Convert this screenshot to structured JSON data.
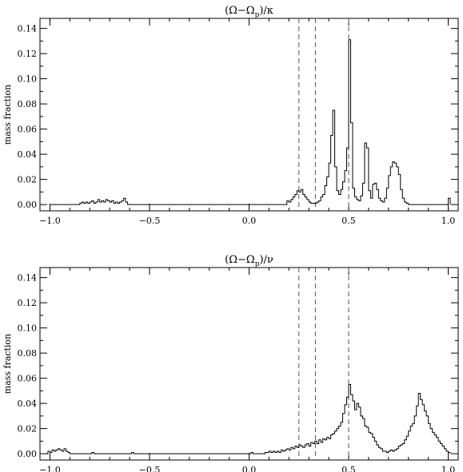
{
  "chart_data": [
    {
      "type": "histogram",
      "title": "(Ω−Ω_p)/κ",
      "title_main": "(Ω−Ω",
      "title_sub": "p",
      "title_tail": ")/κ",
      "ylabel": "mass fraction",
      "xlim": [
        -1.05,
        1.05
      ],
      "ylim": [
        -0.005,
        0.148
      ],
      "xticks": [
        -1.0,
        -0.5,
        0.0,
        0.5,
        1.0
      ],
      "xtick_labels": [
        "−1.0",
        "−0.5",
        "0.0",
        "0.5",
        "1.0"
      ],
      "yticks": [
        0.0,
        0.02,
        0.04,
        0.06,
        0.08,
        0.1,
        0.12,
        0.14
      ],
      "ytick_labels": [
        "0.00",
        "0.02",
        "0.04",
        "0.06",
        "0.08",
        "0.10",
        "0.12",
        "0.14"
      ],
      "vlines": [
        0.25,
        0.333,
        0.5
      ],
      "grid": false,
      "points": [
        [
          -1.0,
          0.0
        ],
        [
          -0.86,
          0.0
        ],
        [
          -0.85,
          0.001
        ],
        [
          -0.84,
          0.002
        ],
        [
          -0.83,
          0.001
        ],
        [
          -0.82,
          0.002
        ],
        [
          -0.81,
          0.001
        ],
        [
          -0.8,
          0.002
        ],
        [
          -0.79,
          0.003
        ],
        [
          -0.78,
          0.001
        ],
        [
          -0.77,
          0.002
        ],
        [
          -0.76,
          0.004
        ],
        [
          -0.75,
          0.002
        ],
        [
          -0.74,
          0.003
        ],
        [
          -0.73,
          0.002
        ],
        [
          -0.72,
          0.004
        ],
        [
          -0.71,
          0.003
        ],
        [
          -0.7,
          0.002
        ],
        [
          -0.69,
          0.003
        ],
        [
          -0.68,
          0.001
        ],
        [
          -0.67,
          0.002
        ],
        [
          -0.66,
          0.001
        ],
        [
          -0.65,
          0.002
        ],
        [
          -0.64,
          0.003
        ],
        [
          -0.63,
          0.005
        ],
        [
          -0.62,
          0.002
        ],
        [
          -0.61,
          0.0
        ],
        [
          0.18,
          0.0
        ],
        [
          0.19,
          0.003
        ],
        [
          0.2,
          0.002
        ],
        [
          0.21,
          0.004
        ],
        [
          0.22,
          0.006
        ],
        [
          0.23,
          0.008
        ],
        [
          0.24,
          0.011
        ],
        [
          0.25,
          0.01
        ],
        [
          0.26,
          0.012
        ],
        [
          0.27,
          0.008
        ],
        [
          0.28,
          0.006
        ],
        [
          0.29,
          0.004
        ],
        [
          0.3,
          0.002
        ],
        [
          0.31,
          0.001
        ],
        [
          0.32,
          0.001
        ],
        [
          0.33,
          0.001
        ],
        [
          0.34,
          0.002
        ],
        [
          0.35,
          0.003
        ],
        [
          0.36,
          0.006
        ],
        [
          0.37,
          0.008
        ],
        [
          0.38,
          0.015
        ],
        [
          0.39,
          0.022
        ],
        [
          0.4,
          0.033
        ],
        [
          0.41,
          0.055
        ],
        [
          0.42,
          0.075
        ],
        [
          0.43,
          0.03
        ],
        [
          0.44,
          0.011
        ],
        [
          0.45,
          0.008
        ],
        [
          0.46,
          0.012
        ],
        [
          0.47,
          0.018
        ],
        [
          0.48,
          0.027
        ],
        [
          0.49,
          0.045
        ],
        [
          0.5,
          0.131
        ],
        [
          0.51,
          0.065
        ],
        [
          0.52,
          0.013
        ],
        [
          0.53,
          0.006
        ],
        [
          0.54,
          0.004
        ],
        [
          0.55,
          0.003
        ],
        [
          0.56,
          0.007
        ],
        [
          0.57,
          0.017
        ],
        [
          0.58,
          0.049
        ],
        [
          0.59,
          0.045
        ],
        [
          0.6,
          0.011
        ],
        [
          0.61,
          0.005
        ],
        [
          0.62,
          0.016
        ],
        [
          0.63,
          0.017
        ],
        [
          0.64,
          0.012
        ],
        [
          0.65,
          0.005
        ],
        [
          0.66,
          0.003
        ],
        [
          0.67,
          0.002
        ],
        [
          0.68,
          0.005
        ],
        [
          0.69,
          0.013
        ],
        [
          0.7,
          0.023
        ],
        [
          0.71,
          0.03
        ],
        [
          0.72,
          0.034
        ],
        [
          0.73,
          0.033
        ],
        [
          0.74,
          0.03
        ],
        [
          0.75,
          0.024
        ],
        [
          0.76,
          0.012
        ],
        [
          0.77,
          0.005
        ],
        [
          0.78,
          0.002
        ],
        [
          0.79,
          0.001
        ],
        [
          0.8,
          0.0
        ],
        [
          0.99,
          0.0
        ],
        [
          1.0,
          0.005
        ],
        [
          1.01,
          0.0
        ]
      ]
    },
    {
      "type": "histogram",
      "title": "(Ω−Ω_p)/ν",
      "title_main": "(Ω−Ω",
      "title_sub": "p",
      "title_tail": ")/ν",
      "ylabel": "mass fraction",
      "xlim": [
        -1.05,
        1.05
      ],
      "ylim": [
        -0.005,
        0.148
      ],
      "xticks": [
        -1.0,
        -0.5,
        0.0,
        0.5,
        1.0
      ],
      "xtick_labels": [
        "−1.0",
        "−0.5",
        "0.0",
        "0.5",
        "1.0"
      ],
      "yticks": [
        0.0,
        0.02,
        0.04,
        0.06,
        0.08,
        0.1,
        0.12,
        0.14
      ],
      "ytick_labels": [
        "0.00",
        "0.02",
        "0.04",
        "0.06",
        "0.08",
        "0.10",
        "0.12",
        "0.14"
      ],
      "vlines": [
        0.25,
        0.333,
        0.5
      ],
      "grid": false,
      "points": [
        [
          -1.02,
          0.0
        ],
        [
          -1.01,
          0.002
        ],
        [
          -1.0,
          0.001
        ],
        [
          -0.99,
          0.003
        ],
        [
          -0.98,
          0.002
        ],
        [
          -0.97,
          0.003
        ],
        [
          -0.96,
          0.004
        ],
        [
          -0.95,
          0.003
        ],
        [
          -0.94,
          0.002
        ],
        [
          -0.93,
          0.004
        ],
        [
          -0.92,
          0.002
        ],
        [
          -0.91,
          0.001
        ],
        [
          -0.9,
          0.0
        ],
        [
          -0.8,
          0.0
        ],
        [
          -0.79,
          0.001
        ],
        [
          -0.78,
          0.0
        ],
        [
          -0.6,
          0.0
        ],
        [
          -0.59,
          0.001
        ],
        [
          -0.58,
          0.0
        ],
        [
          -0.1,
          0.0
        ],
        [
          0.0,
          0.0
        ],
        [
          0.01,
          0.001
        ],
        [
          0.02,
          0.0
        ],
        [
          0.07,
          0.0
        ],
        [
          0.08,
          0.001
        ],
        [
          0.09,
          0.001
        ],
        [
          0.1,
          0.002
        ],
        [
          0.11,
          0.001
        ],
        [
          0.12,
          0.002
        ],
        [
          0.13,
          0.001
        ],
        [
          0.14,
          0.002
        ],
        [
          0.15,
          0.001
        ],
        [
          0.16,
          0.003
        ],
        [
          0.17,
          0.002
        ],
        [
          0.18,
          0.003
        ],
        [
          0.19,
          0.004
        ],
        [
          0.2,
          0.003
        ],
        [
          0.21,
          0.005
        ],
        [
          0.22,
          0.004
        ],
        [
          0.23,
          0.006
        ],
        [
          0.24,
          0.005
        ],
        [
          0.25,
          0.007
        ],
        [
          0.26,
          0.006
        ],
        [
          0.27,
          0.005
        ],
        [
          0.28,
          0.007
        ],
        [
          0.29,
          0.008
        ],
        [
          0.3,
          0.006
        ],
        [
          0.31,
          0.009
        ],
        [
          0.32,
          0.008
        ],
        [
          0.33,
          0.01
        ],
        [
          0.34,
          0.008
        ],
        [
          0.35,
          0.011
        ],
        [
          0.36,
          0.009
        ],
        [
          0.37,
          0.012
        ],
        [
          0.38,
          0.011
        ],
        [
          0.39,
          0.013
        ],
        [
          0.4,
          0.012
        ],
        [
          0.41,
          0.015
        ],
        [
          0.42,
          0.016
        ],
        [
          0.43,
          0.018
        ],
        [
          0.44,
          0.02
        ],
        [
          0.45,
          0.022
        ],
        [
          0.46,
          0.025
        ],
        [
          0.47,
          0.032
        ],
        [
          0.48,
          0.039
        ],
        [
          0.49,
          0.045
        ],
        [
          0.5,
          0.055
        ],
        [
          0.51,
          0.047
        ],
        [
          0.52,
          0.042
        ],
        [
          0.53,
          0.035
        ],
        [
          0.54,
          0.04
        ],
        [
          0.55,
          0.037
        ],
        [
          0.56,
          0.03
        ],
        [
          0.57,
          0.028
        ],
        [
          0.58,
          0.022
        ],
        [
          0.59,
          0.021
        ],
        [
          0.6,
          0.017
        ],
        [
          0.61,
          0.016
        ],
        [
          0.62,
          0.013
        ],
        [
          0.63,
          0.01
        ],
        [
          0.64,
          0.007
        ],
        [
          0.65,
          0.005
        ],
        [
          0.66,
          0.004
        ],
        [
          0.67,
          0.002
        ],
        [
          0.68,
          0.002
        ],
        [
          0.69,
          0.001
        ],
        [
          0.7,
          0.002
        ],
        [
          0.71,
          0.003
        ],
        [
          0.72,
          0.002
        ],
        [
          0.73,
          0.003
        ],
        [
          0.74,
          0.004
        ],
        [
          0.75,
          0.006
        ],
        [
          0.76,
          0.007
        ],
        [
          0.77,
          0.008
        ],
        [
          0.78,
          0.011
        ],
        [
          0.79,
          0.014
        ],
        [
          0.8,
          0.018
        ],
        [
          0.81,
          0.022
        ],
        [
          0.82,
          0.024
        ],
        [
          0.83,
          0.03
        ],
        [
          0.84,
          0.038
        ],
        [
          0.85,
          0.048
        ],
        [
          0.86,
          0.043
        ],
        [
          0.87,
          0.039
        ],
        [
          0.88,
          0.034
        ],
        [
          0.89,
          0.03
        ],
        [
          0.9,
          0.024
        ],
        [
          0.91,
          0.02
        ],
        [
          0.92,
          0.017
        ],
        [
          0.93,
          0.015
        ],
        [
          0.94,
          0.013
        ],
        [
          0.95,
          0.01
        ],
        [
          0.96,
          0.008
        ],
        [
          0.97,
          0.006
        ],
        [
          0.98,
          0.004
        ],
        [
          0.99,
          0.002
        ],
        [
          1.0,
          0.001
        ],
        [
          1.01,
          0.0
        ]
      ]
    }
  ]
}
